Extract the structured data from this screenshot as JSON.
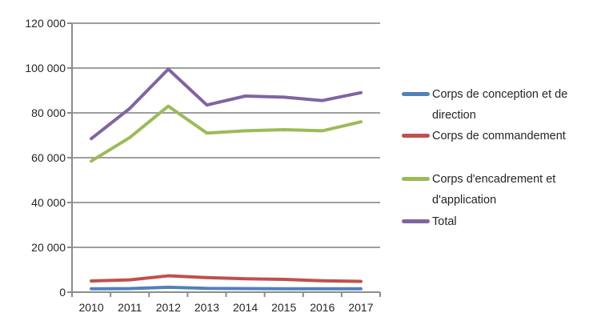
{
  "chart_data": {
    "type": "line",
    "title": "",
    "xlabel": "",
    "ylabel": "",
    "categories": [
      "2010",
      "2011",
      "2012",
      "2013",
      "2014",
      "2015",
      "2016",
      "2017"
    ],
    "series": [
      {
        "name": "Corps de conception et de direction",
        "color": "#4F81BD",
        "values": [
          1500,
          1600,
          2200,
          1700,
          1600,
          1500,
          1500,
          1500
        ]
      },
      {
        "name": "Corps de commandement",
        "color": "#C0504D",
        "values": [
          5000,
          5500,
          7300,
          6500,
          6000,
          5700,
          5100,
          4800
        ]
      },
      {
        "name": "Corps d'encadrement et d'application",
        "color": "#9BBB59",
        "values": [
          58500,
          69000,
          83000,
          71000,
          72000,
          72500,
          72000,
          76000
        ]
      },
      {
        "name": "Total",
        "color": "#8064A2",
        "values": [
          68500,
          82000,
          99500,
          83500,
          87500,
          87000,
          85500,
          89000
        ]
      }
    ],
    "ylim": [
      0,
      120000
    ],
    "ytick_step": 20000,
    "ytick_labels": [
      "0",
      "20 000",
      "40 000",
      "60 000",
      "80 000",
      "100 000",
      "120 000"
    ],
    "grid": true,
    "legend_position": "right"
  },
  "colors": {
    "background": "#FFFFFF",
    "gridline": "#9E9E9E",
    "axis": "#8C8C8C",
    "text": "#252525"
  }
}
